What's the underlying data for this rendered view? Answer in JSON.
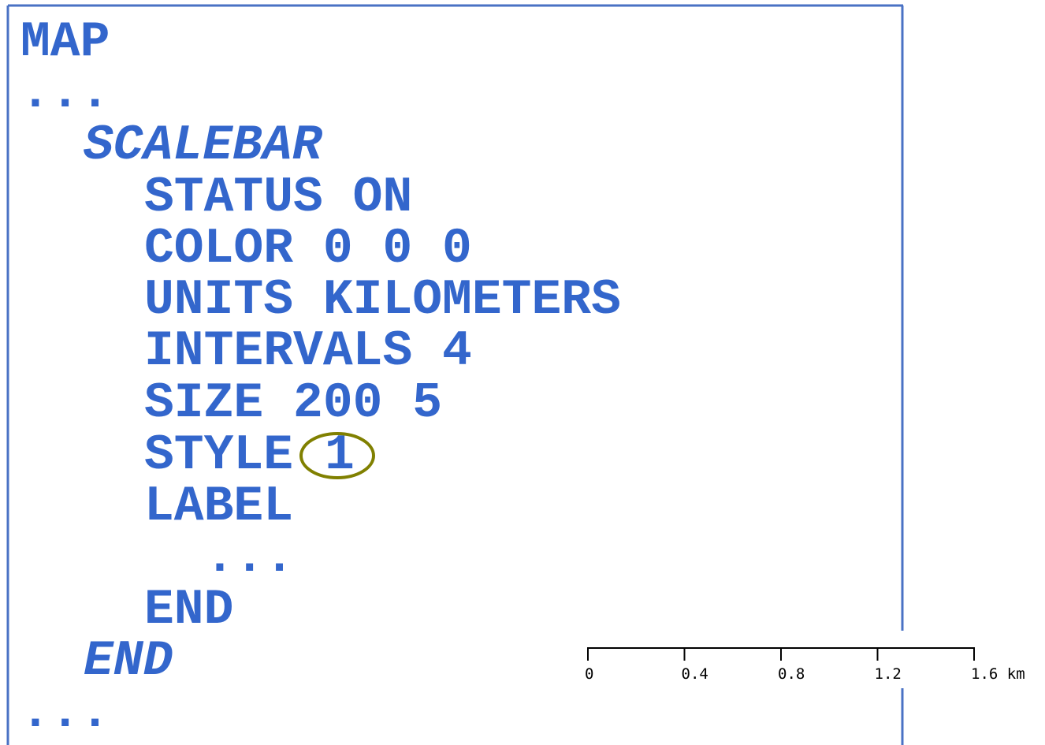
{
  "map": {
    "keyword": "MAP",
    "ellipsis": "...",
    "scalebar": {
      "keyword": "SCALEBAR",
      "params": [
        "STATUS ON",
        "COLOR 0 0 0",
        "UNITS KILOMETERS",
        "INTERVALS 4",
        "SIZE 200 5"
      ],
      "style_keyword": "STYLE",
      "style_value": "1",
      "label": {
        "keyword": "LABEL",
        "ellipsis": "...",
        "end": "END"
      },
      "end": "END"
    },
    "trailing": "..."
  },
  "scalebar_image": {
    "labels": [
      "0",
      "0.4",
      "0.8",
      "1.2",
      "1.6 km"
    ]
  }
}
